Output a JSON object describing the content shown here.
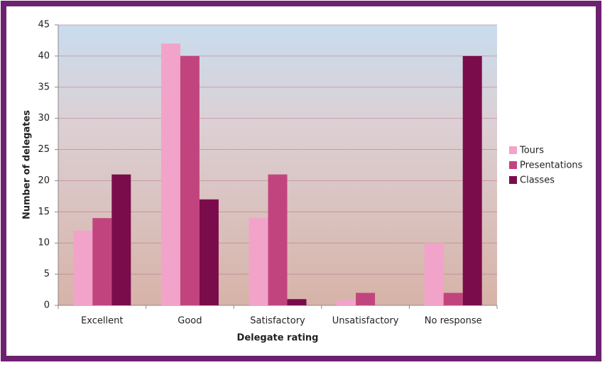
{
  "chart_data": {
    "type": "bar",
    "x_label": "Delegate rating",
    "y_label": "Number of delegates",
    "categories": [
      "Excellent",
      "Good",
      "Satisfactory",
      "Unsatisfactory",
      "No response"
    ],
    "series": [
      {
        "name": "Tours",
        "color": "#f2a3c9",
        "values": [
          12,
          42,
          14,
          1,
          10
        ]
      },
      {
        "name": "Presentations",
        "color": "#c2447f",
        "values": [
          14,
          40,
          21,
          2,
          2
        ]
      },
      {
        "name": "Classes",
        "color": "#7b0c4c",
        "values": [
          21,
          17,
          1,
          0,
          40
        ]
      }
    ],
    "ylim": [
      0,
      45
    ],
    "yticks": [
      0,
      5,
      10,
      15,
      20,
      25,
      30,
      35,
      40,
      45
    ],
    "grid": true,
    "legend": "right"
  }
}
